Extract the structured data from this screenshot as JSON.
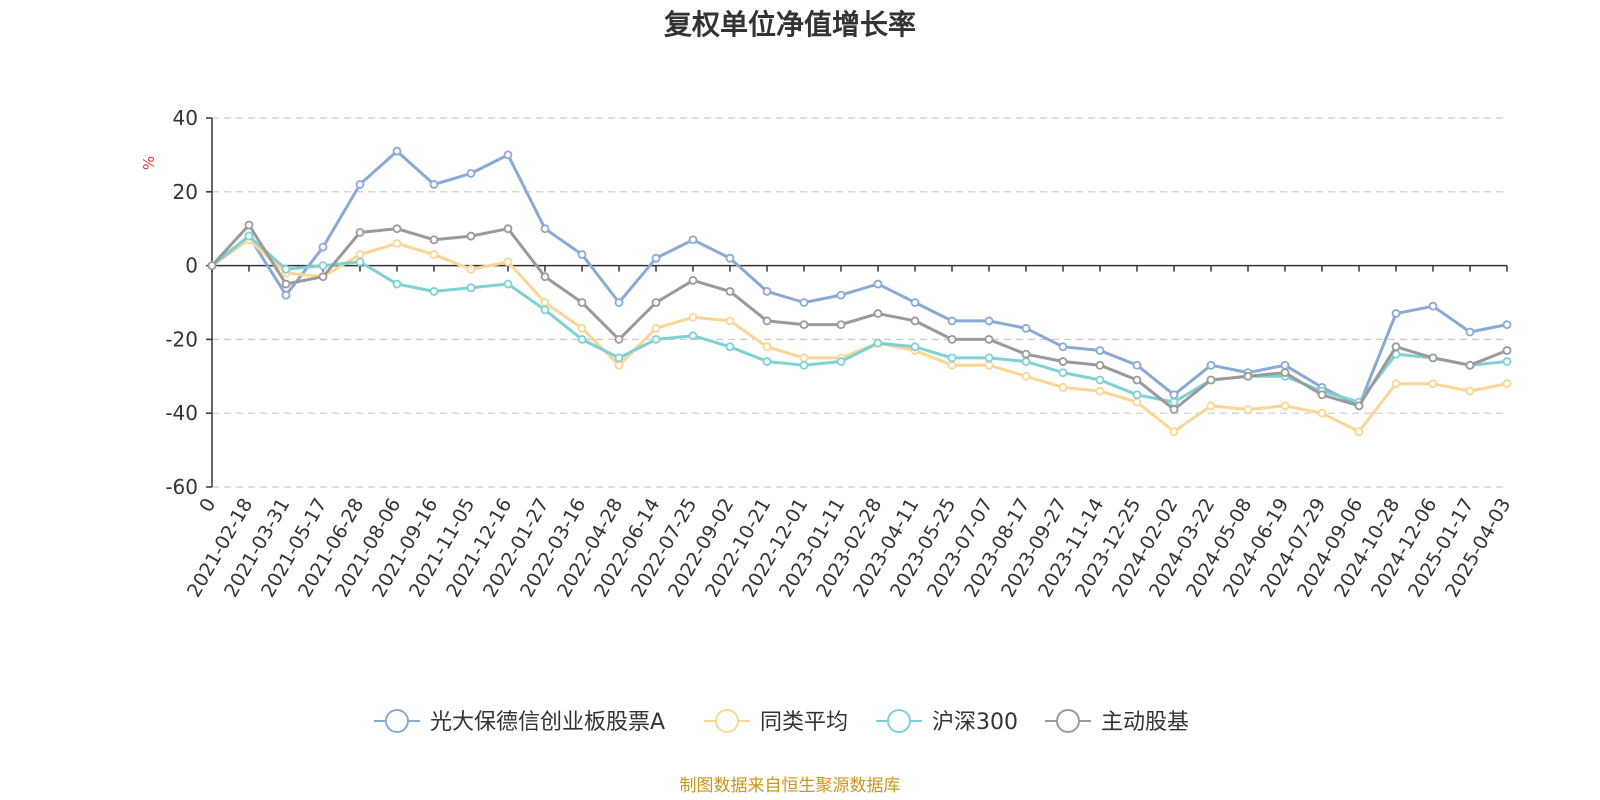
{
  "chart_data": {
    "type": "line",
    "title": "复权单位净值增长率",
    "ylabel": "%",
    "xlabel": "",
    "ylim": [
      -60,
      40
    ],
    "yticks": [
      40,
      20,
      0,
      -20,
      -40,
      -60
    ],
    "grid": true,
    "legend_position": "bottom",
    "x_tick_labels": [
      "0",
      "2021-02-18",
      "2021-03-31",
      "2021-05-17",
      "2021-06-28",
      "2021-08-06",
      "2021-09-16",
      "2021-11-05",
      "2021-12-16",
      "2022-01-27",
      "2022-03-16",
      "2022-04-28",
      "2022-06-14",
      "2022-07-25",
      "2022-09-02",
      "2022-10-21",
      "2022-12-01",
      "2023-01-11",
      "2023-02-28",
      "2023-04-11",
      "2023-05-25",
      "2023-07-07",
      "2023-08-17",
      "2023-09-27",
      "2023-11-14",
      "2023-12-25",
      "2024-02-02",
      "2024-03-22",
      "2024-05-08",
      "2024-06-19",
      "2024-07-29",
      "2024-09-06",
      "2024-10-28",
      "2024-12-06",
      "2025-01-17",
      "2025-04-03"
    ],
    "x": [
      "0",
      "2021-02-18",
      "2021-03-31",
      "2021-05-17",
      "2021-06-28",
      "2021-08-06",
      "2021-09-16",
      "2021-11-05",
      "2021-12-16",
      "2022-01-27",
      "2022-03-16",
      "2022-04-28",
      "2022-06-14",
      "2022-07-25",
      "2022-09-02",
      "2022-10-21",
      "2022-12-01",
      "2023-01-11",
      "2023-02-28",
      "2023-04-11",
      "2023-05-25",
      "2023-07-07",
      "2023-08-17",
      "2023-09-27",
      "2023-11-14",
      "2023-12-25",
      "2024-02-02",
      "2024-03-22",
      "2024-05-08",
      "2024-06-19",
      "2024-07-29",
      "2024-09-06",
      "2024-10-28",
      "2024-12-06",
      "2025-01-17",
      "2025-04-03"
    ],
    "series": [
      {
        "name": "光大保德信创业板股票A",
        "color": "#8aa9d6",
        "values": [
          0,
          8,
          -8,
          5,
          22,
          31,
          22,
          25,
          30,
          10,
          3,
          -10,
          2,
          7,
          2,
          -7,
          -10,
          -8,
          -5,
          -10,
          -15,
          -15,
          -17,
          -22,
          -23,
          -27,
          -35,
          -27,
          -29,
          -27,
          -33,
          -38,
          -13,
          -11,
          -18,
          -16
        ]
      },
      {
        "name": "同类平均",
        "color": "#fcd694",
        "values": [
          0,
          7,
          -2,
          -3,
          3,
          6,
          3,
          -1,
          1,
          -10,
          -17,
          -27,
          -17,
          -14,
          -15,
          -22,
          -25,
          -25,
          -21,
          -23,
          -27,
          -27,
          -30,
          -33,
          -34,
          -37,
          -45,
          -38,
          -39,
          -38,
          -40,
          -45,
          -32,
          -32,
          -34,
          -32
        ]
      },
      {
        "name": "沪深300",
        "color": "#7fd1d3",
        "values": [
          0,
          8,
          -1,
          0,
          1,
          -5,
          -7,
          -6,
          -5,
          -12,
          -20,
          -25,
          -20,
          -19,
          -22,
          -26,
          -27,
          -26,
          -21,
          -22,
          -25,
          -25,
          -26,
          -29,
          -31,
          -35,
          -37,
          -31,
          -30,
          -30,
          -34,
          -37,
          -24,
          -25,
          -27,
          -26
        ]
      },
      {
        "name": "主动股基",
        "color": "#9a9a9a",
        "values": [
          0,
          11,
          -5,
          -3,
          9,
          10,
          7,
          8,
          10,
          -3,
          -10,
          -20,
          -10,
          -4,
          -7,
          -15,
          -16,
          -16,
          -13,
          -15,
          -20,
          -20,
          -24,
          -26,
          -27,
          -31,
          -39,
          -31,
          -30,
          -29,
          -35,
          -38,
          -22,
          -25,
          -27,
          -23
        ]
      }
    ]
  },
  "source_note": "制图数据来自恒生聚源数据库"
}
